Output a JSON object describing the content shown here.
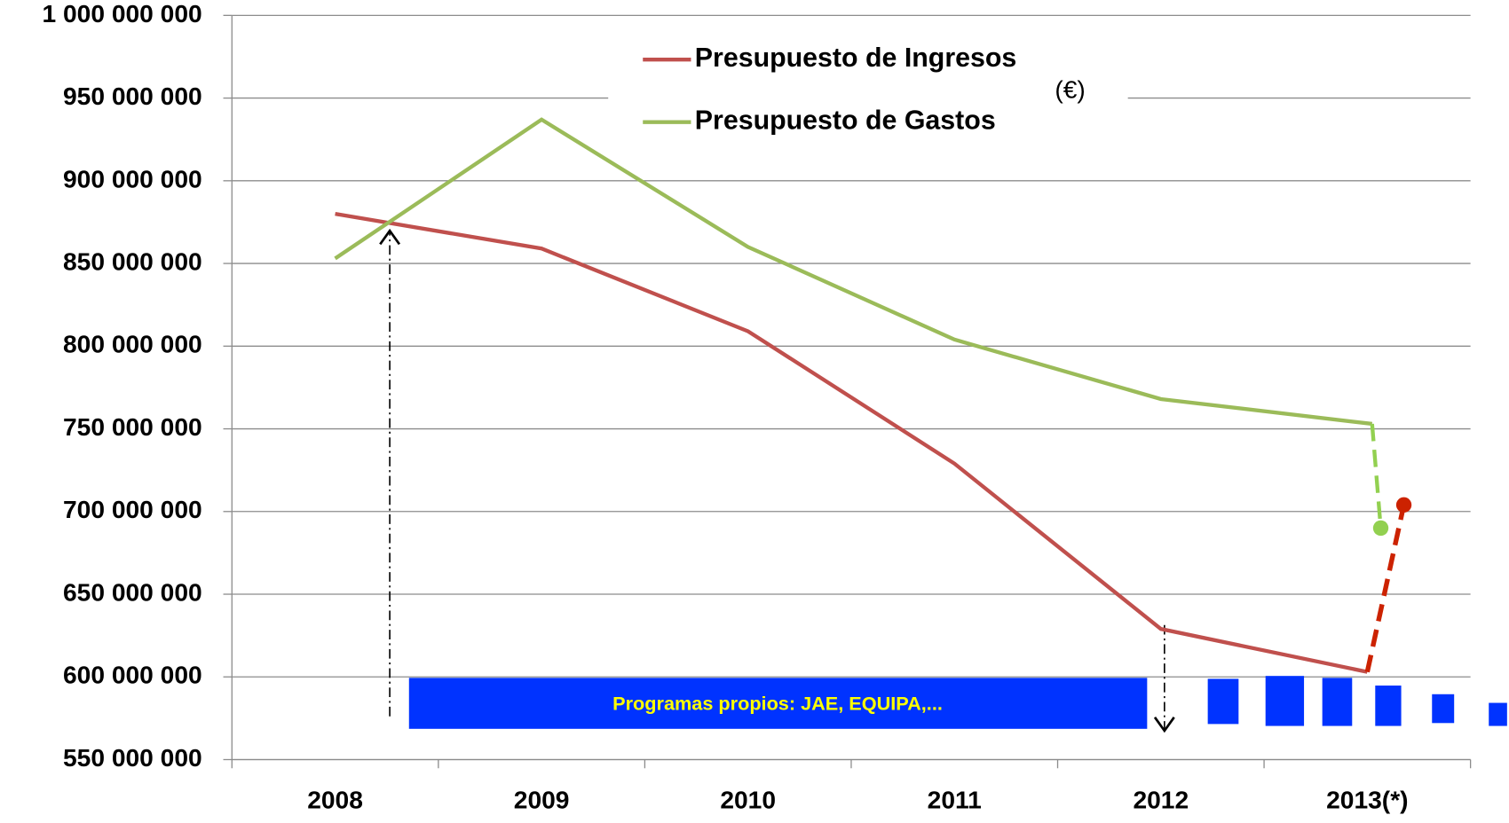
{
  "chart_data": {
    "type": "line",
    "categories": [
      "2008",
      "2009",
      "2010",
      "2011",
      "2012",
      "2013(*)"
    ],
    "series": [
      {
        "name": "Presupuesto de Ingresos",
        "color": "#c0504d",
        "values": [
          880000000,
          859000000,
          809000000,
          729000000,
          629000000,
          603000000
        ],
        "projected": 704000000,
        "projected_color": "#cc2200"
      },
      {
        "name": "Presupuesto de Gastos",
        "color": "#9bbb59",
        "values": [
          853000000,
          937000000,
          860000000,
          804000000,
          768000000,
          753000000
        ],
        "projected": 690000000,
        "projected_color": "#92d050"
      }
    ],
    "unit_note": "(€)",
    "banner": "Programas propios: JAE, EQUIPA,...",
    "ylim": [
      550000000,
      1000000000
    ],
    "yticks": [
      {
        "value": 550000000,
        "label": "550 000 000"
      },
      {
        "value": 600000000,
        "label": "600 000 000"
      },
      {
        "value": 650000000,
        "label": "650 000 000"
      },
      {
        "value": 700000000,
        "label": "700 000 000"
      },
      {
        "value": 750000000,
        "label": "750 000 000"
      },
      {
        "value": 800000000,
        "label": "800 000 000"
      },
      {
        "value": 850000000,
        "label": "850 000 000"
      },
      {
        "value": 900000000,
        "label": "900 000 000"
      },
      {
        "value": 950000000,
        "label": "950 000 000"
      },
      {
        "value": 1000000000,
        "label": "1 000 000 000"
      }
    ],
    "grid": true
  }
}
